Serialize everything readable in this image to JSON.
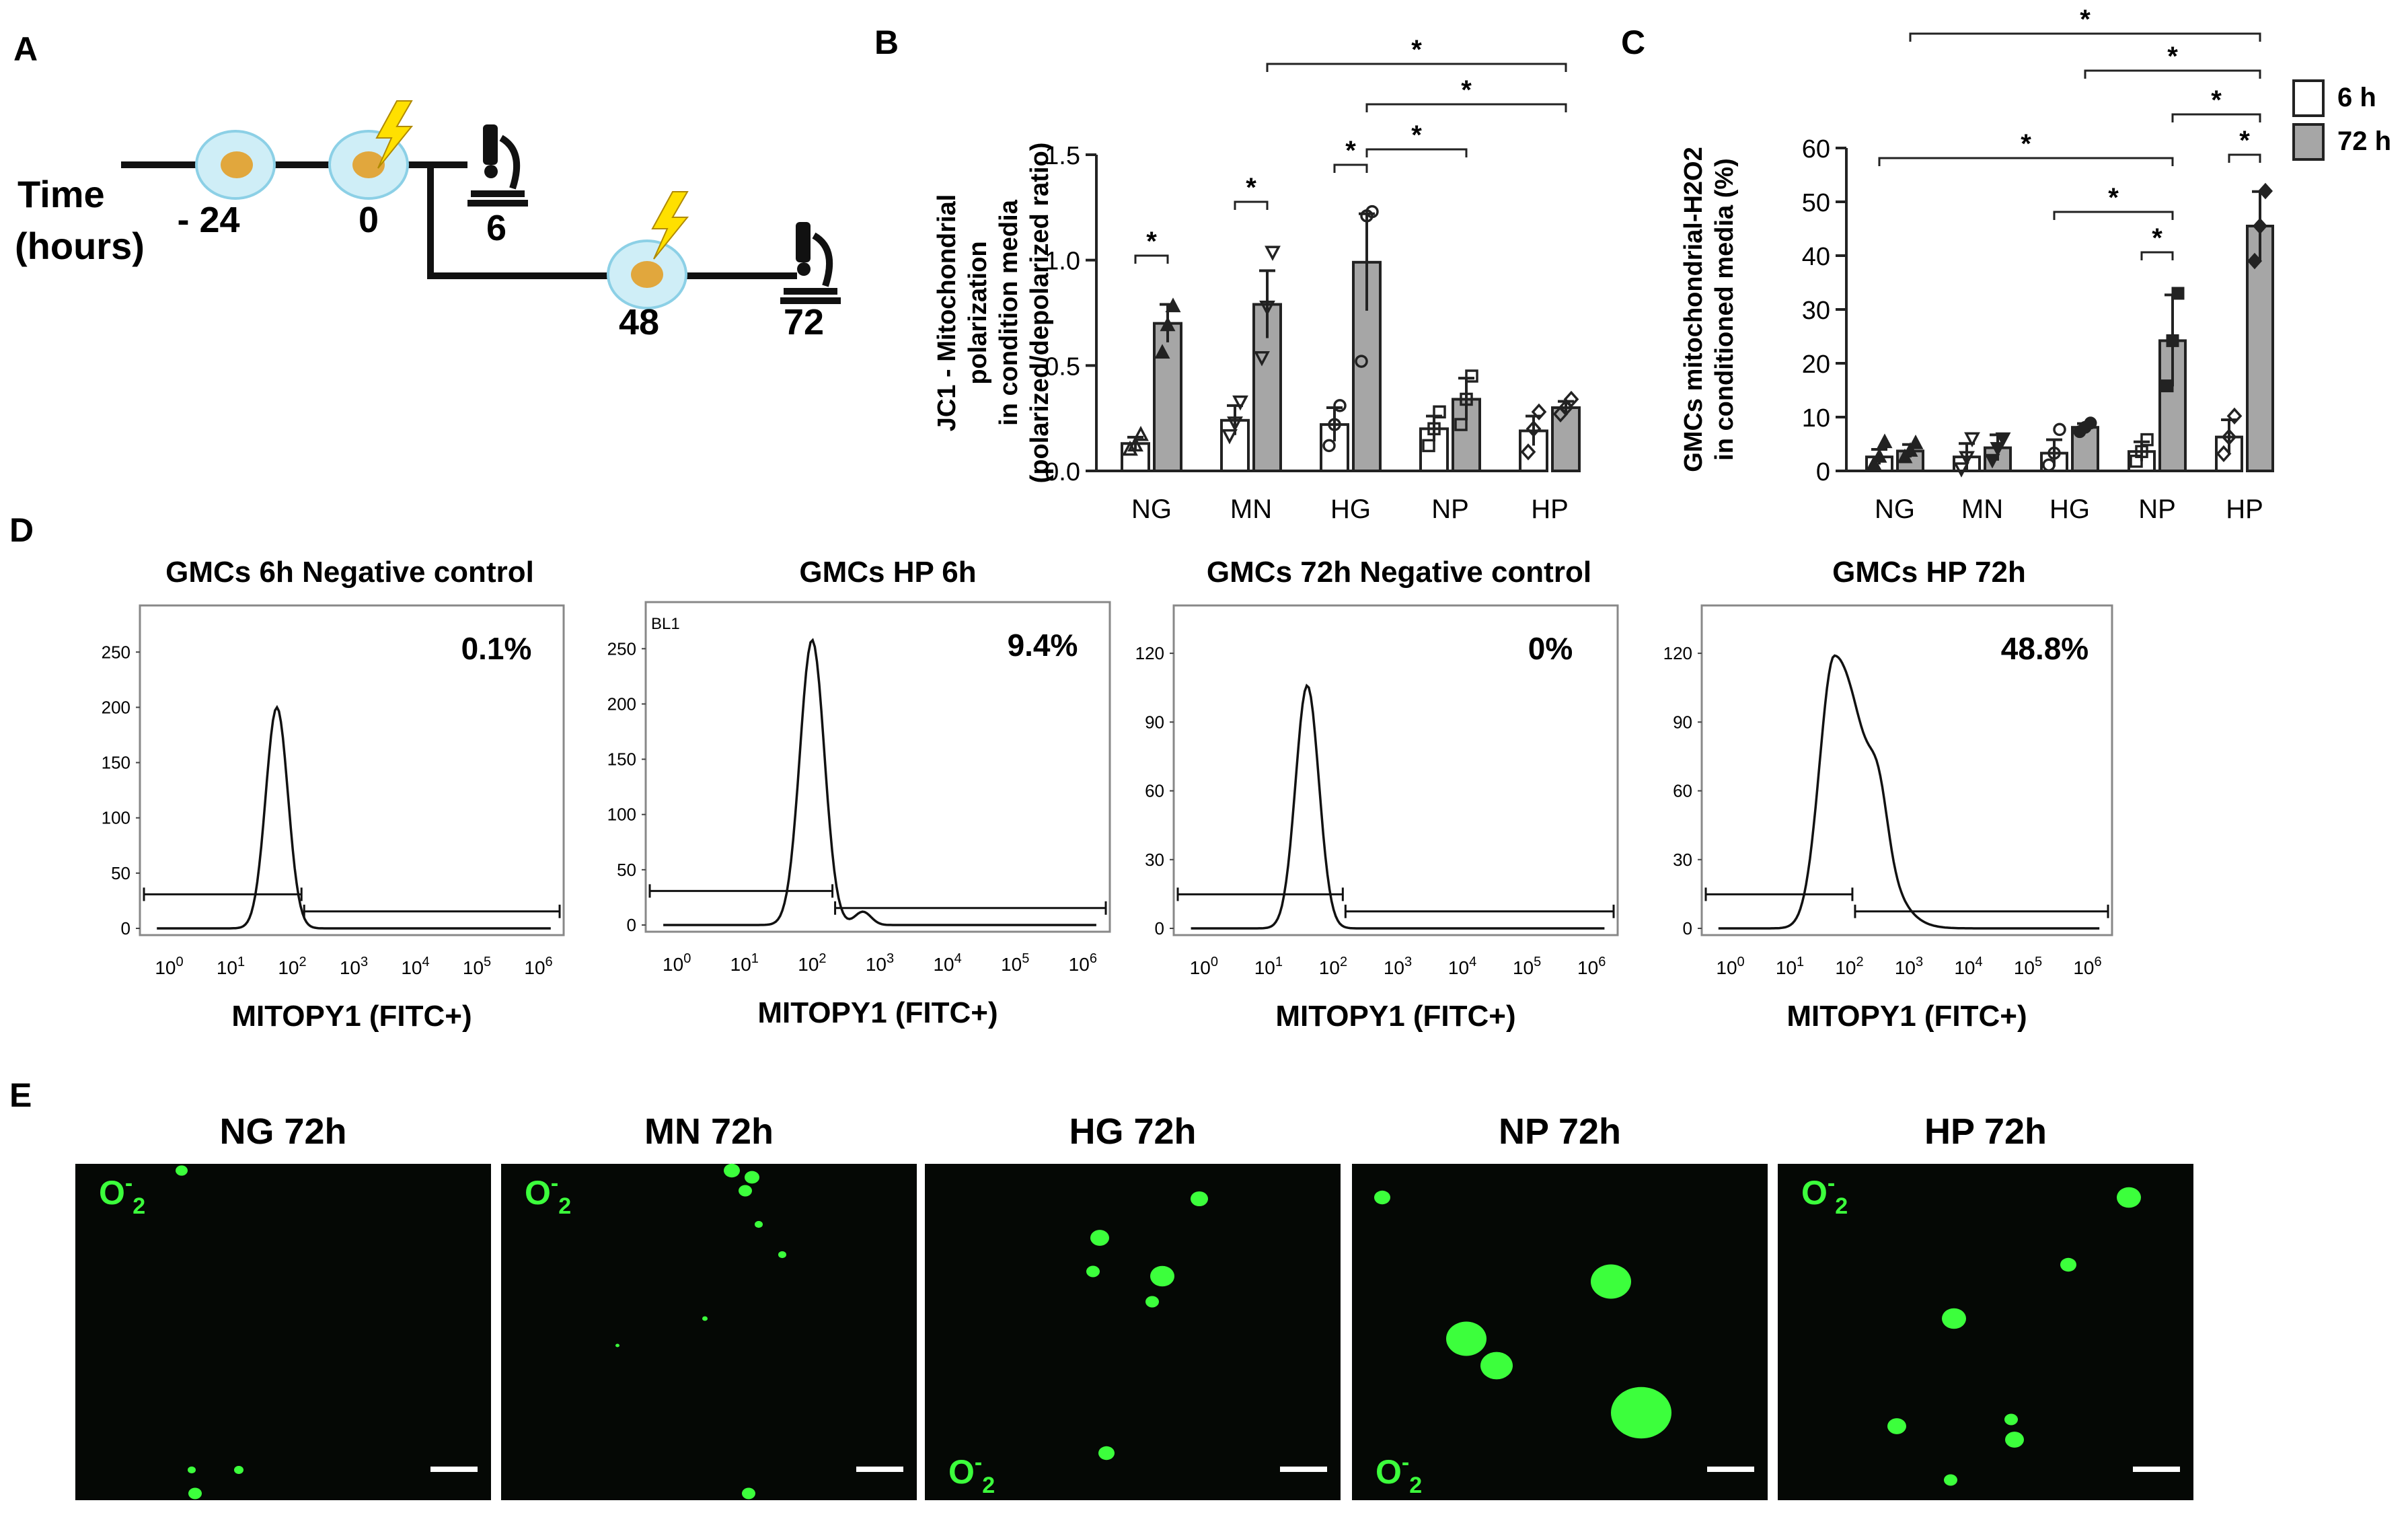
{
  "panel_labels": {
    "a": "A",
    "b": "B",
    "c": "C",
    "d": "D",
    "e": "E"
  },
  "panel_a": {
    "time_label_1": "Time",
    "time_label_2": "(hours)",
    "times": [
      "- 24",
      "0",
      "6",
      "48",
      "72"
    ]
  },
  "legend": {
    "items": [
      "6 h",
      "72 h"
    ],
    "colors": [
      "#ffffff",
      "#a6a6a6"
    ]
  },
  "significance_symbol": "*",
  "chart_data": [
    {
      "type": "bar",
      "panel": "B",
      "ylabel_lines": [
        "JC1 - Mitochondrial",
        "polarization",
        "in condition media",
        "(polarized/depolarized ratio)"
      ],
      "categories": [
        "NG",
        "MN",
        "HG",
        "NP",
        "HP"
      ],
      "ylim": [
        0,
        1.5
      ],
      "yticks": [
        "0.0",
        "0.5",
        "1.0",
        "1.5"
      ],
      "series": [
        {
          "name": "6 h",
          "values": [
            0.13,
            0.24,
            0.22,
            0.2,
            0.19
          ],
          "errors": [
            0.03,
            0.07,
            0.08,
            0.06,
            0.07
          ]
        },
        {
          "name": "72 h",
          "values": [
            0.7,
            0.79,
            0.99,
            0.34,
            0.3
          ],
          "errors": [
            0.09,
            0.16,
            0.23,
            0.1,
            0.03
          ]
        }
      ],
      "points_6h": [
        [
          0.1,
          0.12,
          0.17
        ],
        [
          0.17,
          0.23,
          0.33
        ],
        [
          0.12,
          0.22,
          0.31
        ],
        [
          0.12,
          0.2,
          0.28
        ],
        [
          0.09,
          0.2,
          0.28
        ]
      ],
      "points_72h": [
        [
          0.56,
          0.69,
          0.78
        ],
        [
          0.54,
          0.78,
          1.04
        ],
        [
          0.52,
          1.21,
          1.23
        ],
        [
          0.22,
          0.34,
          0.45
        ],
        [
          0.27,
          0.3,
          0.34
        ]
      ],
      "comparisons": [
        [
          "NG 6 h",
          "NG 72 h"
        ],
        [
          "MN 6 h",
          "MN 72 h"
        ],
        [
          "HG 6 h",
          "HG 72 h"
        ],
        [
          "HG 72 h",
          "NP 72 h"
        ],
        [
          "HG 72 h",
          "HP 72 h"
        ],
        [
          "MN 72 h",
          "HP 72 h"
        ]
      ]
    },
    {
      "type": "bar",
      "panel": "C",
      "ylabel_lines": [
        "GMCs mitochondrial-H2O2",
        "in conditioned media (%)"
      ],
      "categories": [
        "NG",
        "MN",
        "HG",
        "NP",
        "HP"
      ],
      "ylim": [
        0,
        60
      ],
      "yticks": [
        "0",
        "10",
        "20",
        "30",
        "40",
        "50",
        "60"
      ],
      "series": [
        {
          "name": "6 h",
          "values": [
            2.6,
            2.6,
            3.3,
            3.6,
            6.3
          ],
          "errors": [
            1.4,
            2.5,
            2.5,
            1.8,
            3.2
          ]
        },
        {
          "name": "72 h",
          "values": [
            3.7,
            4.3,
            8.1,
            24.2,
            45.5
          ],
          "errors": [
            1.2,
            2.4,
            0.7,
            8.5,
            6.4
          ]
        }
      ],
      "points_6h": [
        [
          1.2,
          2.6,
          5.3
        ],
        [
          0.5,
          2.6,
          6.1
        ],
        [
          1.1,
          3.3,
          7.7
        ],
        [
          1.8,
          3.6,
          5.8
        ],
        [
          3.2,
          6.3,
          10.2
        ]
      ],
      "points_72h": [
        [
          2.5,
          3.7,
          5.1
        ],
        [
          2.1,
          4.3,
          6.1
        ],
        [
          7.3,
          8.1,
          8.9
        ],
        [
          15.8,
          24.2,
          33.0
        ],
        [
          39.0,
          45.5,
          52.0
        ]
      ],
      "comparisons": [
        [
          "NG 6 h",
          "NP 72 h"
        ],
        [
          "HG 6 h",
          "NP 72 h"
        ],
        [
          "NP 6 h",
          "NP 72 h"
        ],
        [
          "HP 6 h",
          "HP 72 h"
        ],
        [
          "NP 72 h",
          "HP 72 h"
        ],
        [
          "HG 72 h",
          "HP 72 h"
        ],
        [
          "NG 72 h",
          "HP 72 h"
        ]
      ]
    }
  ],
  "panel_d": {
    "xlabel": "MITOPY1 (FITC+)",
    "xticks": [
      "0",
      "1",
      "2",
      "3",
      "4",
      "5",
      "6"
    ],
    "plots": [
      {
        "title": "GMCs 6h Negative control",
        "percent": "0.1%",
        "yticks": [
          "0",
          "50",
          "100",
          "150",
          "200",
          "250"
        ],
        "ymax": 280,
        "peak_decade": 1.75,
        "peak_count": 200,
        "gate_label": ""
      },
      {
        "title": "GMCs HP 6h",
        "percent": "9.4%",
        "yticks": [
          "0",
          "50",
          "100",
          "150",
          "200",
          "250"
        ],
        "ymax": 280,
        "peak_decade": 2.0,
        "peak_count": 258,
        "gate_label": "BL1"
      },
      {
        "title": "GMCs 72h Negative control",
        "percent": "0%",
        "yticks": [
          "0",
          "30",
          "60",
          "90",
          "120"
        ],
        "ymax": 135,
        "peak_decade": 1.6,
        "peak_count": 106,
        "gate_label": ""
      },
      {
        "title": "GMCs HP 72h",
        "percent": "48.8%",
        "yticks": [
          "0",
          "30",
          "60",
          "90",
          "120"
        ],
        "ymax": 135,
        "peak_decade": 1.75,
        "peak_count": 119,
        "gate_label": ""
      }
    ]
  },
  "panel_e": {
    "titles": [
      "NG 72h",
      "MN 72h",
      "HG 72h",
      "NP 72h",
      "HP 72h"
    ],
    "stain": "O",
    "stain_super": "-",
    "stain_sub": "2"
  }
}
